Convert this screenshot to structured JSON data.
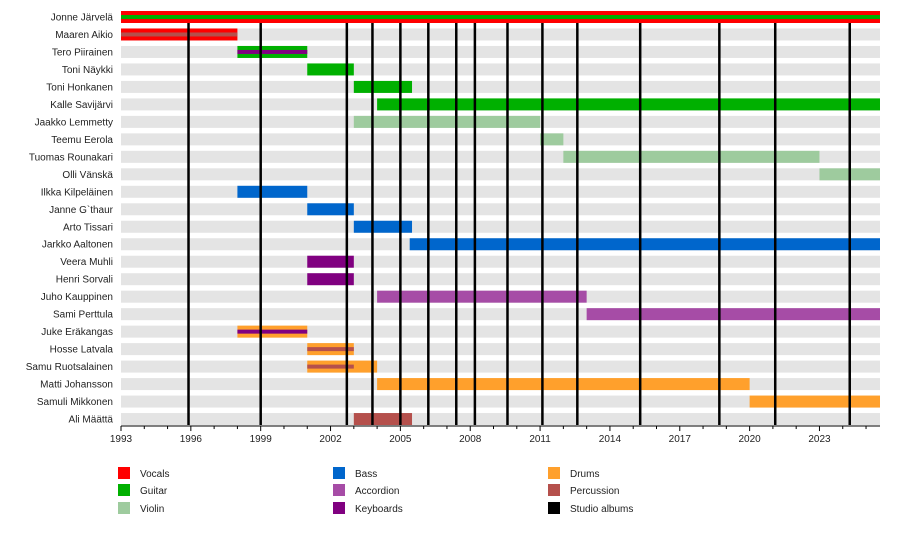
{
  "chart_data": {
    "type": "timeline",
    "xlim": [
      1993,
      2025.6
    ],
    "x_ticks": [
      "1993",
      "1996",
      "1999",
      "2002",
      "2005",
      "2008",
      "2011",
      "2014",
      "2017",
      "2020",
      "2023"
    ],
    "minor_tick_interval_years": 1,
    "grid": false,
    "legend_placement": "bottom",
    "colors": {
      "Vocals": "#FF0000",
      "Guitar": "#00B000",
      "Violin": "#9ECB9E",
      "Bass": "#0066CC",
      "Accordion": "#A64CA6",
      "Keyboards": "#800080",
      "Drums": "#FFA02C",
      "Percussion": "#B5504C",
      "Studio albums": "#000000"
    },
    "legend": [
      [
        "Vocals",
        "Guitar",
        "Violin"
      ],
      [
        "Bass",
        "Accordion",
        "Keyboards"
      ],
      [
        "Drums",
        "Percussion",
        "Studio albums"
      ]
    ],
    "members": [
      {
        "name": "Jonne Järvelä",
        "start": 1993,
        "end": "present",
        "role": "Vocals",
        "stripe": "Guitar"
      },
      {
        "name": "Maaren Aikio",
        "start": 1993,
        "end": 1998,
        "role": "Vocals",
        "stripe": "Percussion"
      },
      {
        "name": "Tero Piirainen",
        "start": 1998,
        "end": 2001,
        "role": "Guitar",
        "stripe": "Keyboards"
      },
      {
        "name": "Toni Näykki",
        "start": 2001,
        "end": 2003,
        "role": "Guitar"
      },
      {
        "name": "Toni Honkanen",
        "start": 2003,
        "end": 2005.5,
        "role": "Guitar"
      },
      {
        "name": "Kalle Savijärvi",
        "start": 2004,
        "end": "present",
        "role": "Guitar"
      },
      {
        "name": "Jaakko Lemmetty",
        "start": 2003,
        "end": 2011,
        "role": "Violin"
      },
      {
        "name": "Teemu Eerola",
        "start": 2011,
        "end": 2012,
        "role": "Violin"
      },
      {
        "name": "Tuomas Rounakari",
        "start": 2012,
        "end": 2023,
        "role": "Violin"
      },
      {
        "name": "Olli Vänskä",
        "start": 2023,
        "end": "present",
        "role": "Violin"
      },
      {
        "name": "Ilkka Kilpeläinen",
        "start": 1998,
        "end": 2001,
        "role": "Bass"
      },
      {
        "name": "Janne G`thaur",
        "start": 2001,
        "end": 2003,
        "role": "Bass"
      },
      {
        "name": "Arto Tissari",
        "start": 2003,
        "end": 2005.5,
        "role": "Bass"
      },
      {
        "name": "Jarkko Aaltonen",
        "start": 2005.4,
        "end": "present",
        "role": "Bass"
      },
      {
        "name": "Veera Muhli",
        "start": 2001,
        "end": 2003,
        "role": "Keyboards"
      },
      {
        "name": "Henri Sorvali",
        "start": 2001,
        "end": 2003,
        "role": "Keyboards"
      },
      {
        "name": "Juho Kauppinen",
        "start": 2004,
        "end": 2013,
        "role": "Accordion"
      },
      {
        "name": "Sami Perttula",
        "start": 2013,
        "end": "present",
        "role": "Accordion"
      },
      {
        "name": "Juke Eräkangas",
        "start": 1998,
        "end": 2001,
        "role": "Drums",
        "stripe": "Keyboards"
      },
      {
        "name": "Hosse Latvala",
        "start": 2001,
        "end": 2003,
        "role": "Drums",
        "stripe": "Percussion"
      },
      {
        "name": "Samu Ruotsalainen",
        "start": 2001,
        "end": 2004,
        "role": "Drums",
        "stripe": "Percussion",
        "stripe_end": 2003
      },
      {
        "name": "Matti Johansson",
        "start": 2004,
        "end": 2020,
        "role": "Drums"
      },
      {
        "name": "Samuli Mikkonen",
        "start": 2020,
        "end": "present",
        "role": "Drums"
      },
      {
        "name": "Ali Määttä",
        "start": 2003,
        "end": 2005.5,
        "role": "Percussion"
      }
    ],
    "studio_albums": [
      1995.9,
      1999.0,
      2002.7,
      2003.8,
      2005.0,
      2006.2,
      2007.4,
      2008.2,
      2009.6,
      2011.1,
      2012.6,
      2015.3,
      2018.7,
      2021.1,
      2024.3
    ]
  }
}
